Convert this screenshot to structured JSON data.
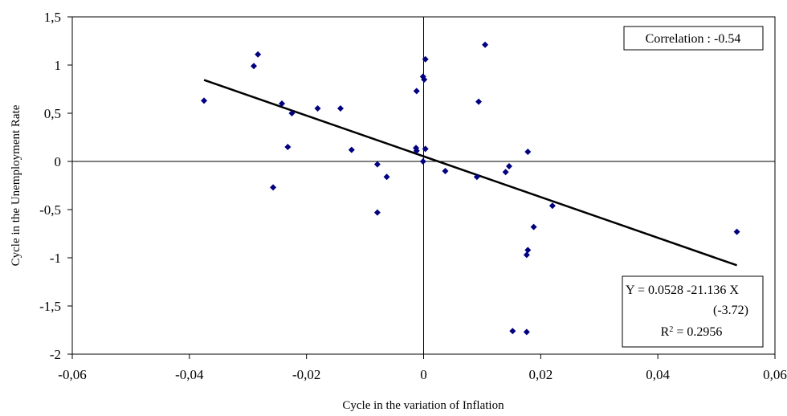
{
  "chart_data": {
    "type": "scatter",
    "xlabel": "Cycle in the variation of Inflation",
    "ylabel": "Cycle in the Unemployment Rate",
    "xlim": [
      -0.06,
      0.06
    ],
    "ylim": [
      -2,
      1.5
    ],
    "x_ticks": [
      "-0,06",
      "-0,04",
      "-0,02",
      "0",
      "0,02",
      "0,04",
      "0,06"
    ],
    "y_ticks": [
      "1,5",
      "1",
      "0,5",
      "0",
      "-0,5",
      "-1",
      "-1,5",
      "-2"
    ],
    "grid": false,
    "zero_lines": true,
    "marker_color": "#000080",
    "points": [
      {
        "x": -0.0375,
        "y": 0.63
      },
      {
        "x": -0.0283,
        "y": 1.11
      },
      {
        "x": -0.029,
        "y": 0.99
      },
      {
        "x": -0.0242,
        "y": 0.6
      },
      {
        "x": -0.0225,
        "y": 0.5
      },
      {
        "x": -0.0181,
        "y": 0.55
      },
      {
        "x": -0.0142,
        "y": 0.55
      },
      {
        "x": -0.0232,
        "y": 0.15
      },
      {
        "x": -0.0123,
        "y": 0.12
      },
      {
        "x": -0.0257,
        "y": -0.27
      },
      {
        "x": -0.0079,
        "y": -0.03
      },
      {
        "x": -0.0063,
        "y": -0.16
      },
      {
        "x": -0.0079,
        "y": -0.53
      },
      {
        "x": -0.0012,
        "y": 0.73
      },
      {
        "x": -0.0013,
        "y": 0.14
      },
      {
        "x": -0.0012,
        "y": 0.11
      },
      {
        "x": -0.0001,
        "y": 0.88
      },
      {
        "x": 0.0001,
        "y": 0.85
      },
      {
        "x": 0.0003,
        "y": 1.06
      },
      {
        "x": 0.0003,
        "y": 0.13
      },
      {
        "x": -0.0001,
        "y": 0.0
      },
      {
        "x": 0.0037,
        "y": -0.1
      },
      {
        "x": 0.0105,
        "y": 1.21
      },
      {
        "x": 0.0094,
        "y": 0.62
      },
      {
        "x": 0.0091,
        "y": -0.16
      },
      {
        "x": 0.014,
        "y": -0.11
      },
      {
        "x": 0.0146,
        "y": -0.05
      },
      {
        "x": 0.0178,
        "y": 0.1
      },
      {
        "x": 0.022,
        "y": -0.46
      },
      {
        "x": 0.0188,
        "y": -0.68
      },
      {
        "x": 0.0178,
        "y": -0.92
      },
      {
        "x": 0.0176,
        "y": -0.97
      },
      {
        "x": 0.0152,
        "y": -1.76
      },
      {
        "x": 0.0176,
        "y": -1.77
      },
      {
        "x": 0.0535,
        "y": -0.73
      }
    ],
    "regression": {
      "intercept": 0.0528,
      "slope": -21.136,
      "x_range": [
        -0.0375,
        0.0535
      ]
    },
    "annotations": {
      "correlation": "Correlation : -0.54",
      "equation": "Y = 0.0528 -21.136 X",
      "t_stat": "(-3.72)",
      "r2_label": "R",
      "r2_sup": "2",
      "r2_value": " = 0.2956"
    }
  }
}
